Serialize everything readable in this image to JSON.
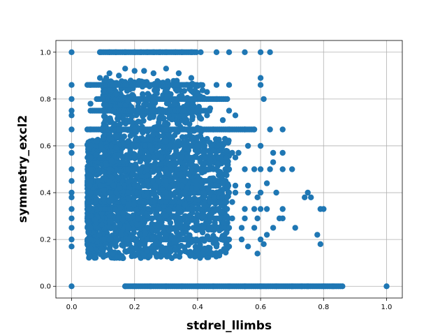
{
  "chart_data": {
    "type": "scatter",
    "title": "",
    "xlabel": "stdrel_llimbs",
    "ylabel": "symmetry_excl2",
    "xlim": [
      -0.05,
      1.05
    ],
    "ylim": [
      -0.05,
      1.05
    ],
    "x_ticks": [
      "0.0",
      "0.2",
      "0.4",
      "0.6",
      "0.8",
      "1.0"
    ],
    "y_ticks": [
      "0.0",
      "0.2",
      "0.4",
      "0.6",
      "0.8",
      "1.0"
    ],
    "grid": true,
    "marker_color": "#1f77b4",
    "points": [
      [
        0.0,
        1.0
      ],
      [
        0.0,
        0.86
      ],
      [
        0.0,
        0.8
      ],
      [
        0.0,
        0.75
      ],
      [
        0.0,
        0.73
      ],
      [
        0.0,
        0.67
      ],
      [
        0.0,
        0.6
      ],
      [
        0.0,
        0.57
      ],
      [
        0.0,
        0.5
      ],
      [
        0.0,
        0.45
      ],
      [
        0.0,
        0.4
      ],
      [
        0.0,
        0.38
      ],
      [
        0.0,
        0.33
      ],
      [
        0.0,
        0.29
      ],
      [
        0.0,
        0.25
      ],
      [
        0.0,
        0.2
      ],
      [
        0.0,
        0.17
      ],
      [
        0.0,
        0.0
      ],
      [
        0.09,
        1.0
      ],
      [
        0.12,
        1.0
      ],
      [
        0.14,
        1.0
      ],
      [
        0.17,
        1.0
      ],
      [
        0.2,
        1.0
      ],
      [
        0.22,
        1.0
      ],
      [
        0.24,
        1.0
      ],
      [
        0.26,
        1.0
      ],
      [
        0.28,
        1.0
      ],
      [
        0.3,
        1.0
      ],
      [
        0.33,
        1.0
      ],
      [
        0.35,
        1.0
      ],
      [
        0.38,
        1.0
      ],
      [
        0.41,
        1.0
      ],
      [
        0.46,
        1.0
      ],
      [
        0.5,
        1.0
      ],
      [
        0.55,
        1.0
      ],
      [
        0.6,
        1.0
      ],
      [
        0.63,
        1.0
      ],
      [
        0.06,
        0.86
      ],
      [
        0.09,
        0.89
      ],
      [
        0.11,
        0.89
      ],
      [
        0.12,
        0.91
      ],
      [
        0.15,
        0.9
      ],
      [
        0.17,
        0.93
      ],
      [
        0.2,
        0.92
      ],
      [
        0.23,
        0.92
      ],
      [
        0.26,
        0.91
      ],
      [
        0.3,
        0.93
      ],
      [
        0.34,
        0.91
      ],
      [
        0.38,
        0.89
      ],
      [
        0.39,
        0.86
      ],
      [
        0.41,
        0.86
      ],
      [
        0.43,
        0.83
      ],
      [
        0.46,
        0.86
      ],
      [
        0.5,
        0.86
      ],
      [
        0.6,
        0.89
      ],
      [
        0.6,
        0.86
      ],
      [
        0.61,
        0.8
      ],
      [
        0.06,
        0.78
      ],
      [
        0.1,
        0.8
      ],
      [
        0.14,
        0.82
      ],
      [
        0.18,
        0.79
      ],
      [
        0.22,
        0.8
      ],
      [
        0.26,
        0.79
      ],
      [
        0.3,
        0.8
      ],
      [
        0.33,
        0.78
      ],
      [
        0.36,
        0.8
      ],
      [
        0.39,
        0.8
      ],
      [
        0.44,
        0.76
      ],
      [
        0.46,
        0.8
      ],
      [
        0.41,
        0.75
      ],
      [
        0.43,
        0.73
      ],
      [
        0.48,
        0.71
      ],
      [
        0.5,
        0.75
      ],
      [
        0.52,
        0.73
      ],
      [
        0.06,
        0.67
      ],
      [
        0.1,
        0.67
      ],
      [
        0.15,
        0.67
      ],
      [
        0.2,
        0.67
      ],
      [
        0.25,
        0.67
      ],
      [
        0.3,
        0.67
      ],
      [
        0.35,
        0.67
      ],
      [
        0.4,
        0.67
      ],
      [
        0.45,
        0.67
      ],
      [
        0.5,
        0.67
      ],
      [
        0.55,
        0.67
      ],
      [
        0.58,
        0.67
      ],
      [
        0.63,
        0.67
      ],
      [
        0.67,
        0.67
      ],
      [
        0.08,
        0.62
      ],
      [
        0.12,
        0.63
      ],
      [
        0.18,
        0.62
      ],
      [
        0.24,
        0.63
      ],
      [
        0.3,
        0.62
      ],
      [
        0.36,
        0.6
      ],
      [
        0.4,
        0.6
      ],
      [
        0.42,
        0.57
      ],
      [
        0.45,
        0.58
      ],
      [
        0.47,
        0.58
      ],
      [
        0.48,
        0.56
      ],
      [
        0.51,
        0.57
      ],
      [
        0.53,
        0.57
      ],
      [
        0.56,
        0.6
      ],
      [
        0.6,
        0.6
      ],
      [
        0.64,
        0.57
      ],
      [
        0.67,
        0.57
      ],
      [
        0.06,
        0.55
      ],
      [
        0.1,
        0.55
      ],
      [
        0.15,
        0.56
      ],
      [
        0.2,
        0.55
      ],
      [
        0.26,
        0.55
      ],
      [
        0.32,
        0.55
      ],
      [
        0.37,
        0.55
      ],
      [
        0.41,
        0.53
      ],
      [
        0.44,
        0.54
      ],
      [
        0.49,
        0.55
      ],
      [
        0.52,
        0.55
      ],
      [
        0.06,
        0.5
      ],
      [
        0.12,
        0.5
      ],
      [
        0.18,
        0.5
      ],
      [
        0.24,
        0.5
      ],
      [
        0.3,
        0.5
      ],
      [
        0.36,
        0.5
      ],
      [
        0.41,
        0.5
      ],
      [
        0.45,
        0.5
      ],
      [
        0.5,
        0.5
      ],
      [
        0.55,
        0.5
      ],
      [
        0.58,
        0.5
      ],
      [
        0.6,
        0.5
      ],
      [
        0.63,
        0.5
      ],
      [
        0.67,
        0.5
      ],
      [
        0.7,
        0.5
      ],
      [
        0.64,
        0.53
      ],
      [
        0.06,
        0.45
      ],
      [
        0.12,
        0.45
      ],
      [
        0.18,
        0.45
      ],
      [
        0.24,
        0.45
      ],
      [
        0.3,
        0.45
      ],
      [
        0.36,
        0.45
      ],
      [
        0.4,
        0.47
      ],
      [
        0.44,
        0.46
      ],
      [
        0.48,
        0.44
      ],
      [
        0.52,
        0.43
      ],
      [
        0.56,
        0.43
      ],
      [
        0.62,
        0.44
      ],
      [
        0.6,
        0.4
      ],
      [
        0.65,
        0.4
      ],
      [
        0.75,
        0.4
      ],
      [
        0.76,
        0.38
      ],
      [
        0.74,
        0.38
      ],
      [
        0.06,
        0.4
      ],
      [
        0.12,
        0.4
      ],
      [
        0.18,
        0.4
      ],
      [
        0.24,
        0.4
      ],
      [
        0.3,
        0.4
      ],
      [
        0.36,
        0.4
      ],
      [
        0.42,
        0.4
      ],
      [
        0.47,
        0.4
      ],
      [
        0.52,
        0.4
      ],
      [
        0.56,
        0.4
      ],
      [
        0.59,
        0.38
      ],
      [
        0.06,
        0.36
      ],
      [
        0.12,
        0.36
      ],
      [
        0.18,
        0.35
      ],
      [
        0.24,
        0.36
      ],
      [
        0.3,
        0.36
      ],
      [
        0.36,
        0.35
      ],
      [
        0.42,
        0.35
      ],
      [
        0.47,
        0.36
      ],
      [
        0.51,
        0.36
      ],
      [
        0.55,
        0.33
      ],
      [
        0.58,
        0.33
      ],
      [
        0.6,
        0.33
      ],
      [
        0.62,
        0.33
      ],
      [
        0.67,
        0.33
      ],
      [
        0.8,
        0.33
      ],
      [
        0.79,
        0.33
      ],
      [
        0.06,
        0.3
      ],
      [
        0.12,
        0.3
      ],
      [
        0.18,
        0.3
      ],
      [
        0.24,
        0.3
      ],
      [
        0.3,
        0.3
      ],
      [
        0.36,
        0.3
      ],
      [
        0.42,
        0.3
      ],
      [
        0.47,
        0.29
      ],
      [
        0.51,
        0.29
      ],
      [
        0.55,
        0.29
      ],
      [
        0.59,
        0.29
      ],
      [
        0.66,
        0.29
      ],
      [
        0.67,
        0.29
      ],
      [
        0.64,
        0.25
      ],
      [
        0.71,
        0.25
      ],
      [
        0.78,
        0.22
      ],
      [
        0.06,
        0.25
      ],
      [
        0.12,
        0.25
      ],
      [
        0.18,
        0.25
      ],
      [
        0.24,
        0.25
      ],
      [
        0.3,
        0.25
      ],
      [
        0.36,
        0.25
      ],
      [
        0.42,
        0.25
      ],
      [
        0.46,
        0.25
      ],
      [
        0.5,
        0.25
      ],
      [
        0.54,
        0.25
      ],
      [
        0.58,
        0.25
      ],
      [
        0.62,
        0.22
      ],
      [
        0.6,
        0.2
      ],
      [
        0.61,
        0.18
      ],
      [
        0.06,
        0.2
      ],
      [
        0.12,
        0.2
      ],
      [
        0.18,
        0.2
      ],
      [
        0.24,
        0.2
      ],
      [
        0.3,
        0.2
      ],
      [
        0.36,
        0.2
      ],
      [
        0.42,
        0.2
      ],
      [
        0.46,
        0.2
      ],
      [
        0.5,
        0.2
      ],
      [
        0.54,
        0.2
      ],
      [
        0.56,
        0.17
      ],
      [
        0.59,
        0.14
      ],
      [
        0.79,
        0.18
      ],
      [
        0.06,
        0.16
      ],
      [
        0.12,
        0.16
      ],
      [
        0.18,
        0.15
      ],
      [
        0.24,
        0.15
      ],
      [
        0.3,
        0.15
      ],
      [
        0.36,
        0.15
      ],
      [
        0.42,
        0.16
      ],
      [
        0.46,
        0.17
      ],
      [
        0.5,
        0.17
      ],
      [
        0.13,
        0.14
      ],
      [
        0.2,
        0.13
      ],
      [
        0.27,
        0.13
      ],
      [
        0.33,
        0.13
      ],
      [
        0.38,
        0.14
      ],
      [
        0.17,
        0.0
      ],
      [
        0.2,
        0.0
      ],
      [
        0.25,
        0.0
      ],
      [
        0.3,
        0.0
      ],
      [
        0.35,
        0.0
      ],
      [
        0.4,
        0.0
      ],
      [
        0.45,
        0.0
      ],
      [
        0.5,
        0.0
      ],
      [
        0.55,
        0.0
      ],
      [
        0.6,
        0.0
      ],
      [
        0.65,
        0.0
      ],
      [
        0.7,
        0.0
      ],
      [
        0.73,
        0.0
      ],
      [
        0.75,
        0.0
      ],
      [
        0.8,
        0.0
      ],
      [
        0.83,
        0.0
      ],
      [
        0.86,
        0.0
      ],
      [
        1.0,
        0.0
      ]
    ],
    "dense_regions": [
      {
        "x_range": [
          0.05,
          0.5
        ],
        "y_range": [
          0.12,
          0.63
        ],
        "density": "high"
      },
      {
        "x_range": [
          0.1,
          0.42
        ],
        "y_range": [
          0.63,
          0.88
        ],
        "density": "medium"
      }
    ]
  }
}
